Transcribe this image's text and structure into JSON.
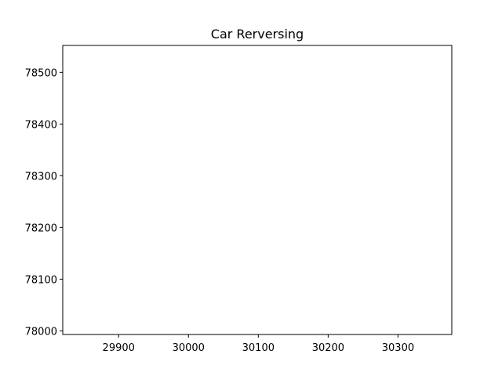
{
  "chart_data": {
    "type": "line",
    "title": "Car Rerversing",
    "xlabel": "",
    "ylabel": "",
    "xlim": [
      29820,
      30377
    ],
    "ylim": [
      77993,
      78552
    ],
    "xticks": [
      29900,
      30000,
      30100,
      30200,
      30300
    ],
    "yticks": [
      78000,
      78100,
      78200,
      78300,
      78400,
      78500
    ],
    "grid": false,
    "series": []
  }
}
